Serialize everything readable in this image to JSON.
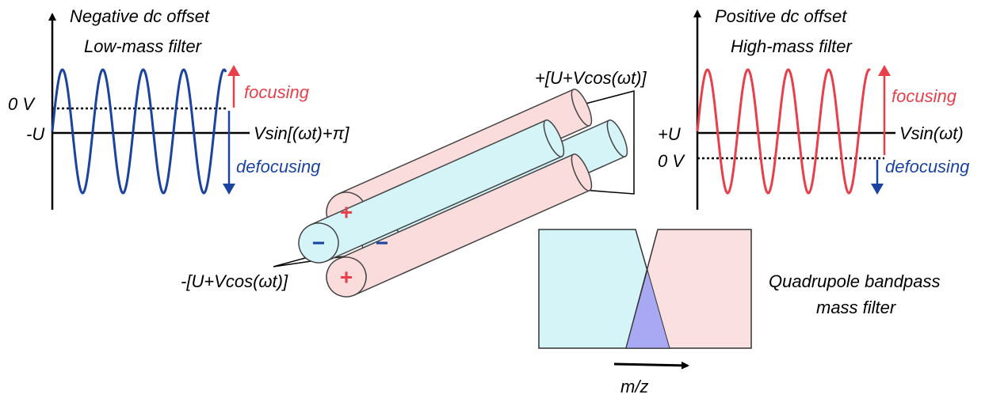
{
  "left_plot": {
    "title": "Negative dc offset",
    "subtitle": "Low-mass filter",
    "zero_label": "0 V",
    "offset_label": "-U",
    "wave_label": "Vsin[(ωt)+π]",
    "focusing": "focusing",
    "defocusing": "defocusing"
  },
  "right_plot": {
    "title": "Positive dc offset",
    "subtitle": "High-mass filter",
    "zero_label": "0 V",
    "offset_label": "+U",
    "wave_label": "Vsin(ωt)",
    "focusing": "focusing",
    "defocusing": "defocusing"
  },
  "rods": {
    "positive_label": "+[U+Vcos(ωt)]",
    "negative_label": "-[U+Vcos(ωt)]",
    "plus_sign": "+",
    "minus_sign": "−"
  },
  "bandpass": {
    "title_line1": "Quadrupole bandpass",
    "title_line2": "mass filter",
    "axis_label": "m/z"
  }
}
